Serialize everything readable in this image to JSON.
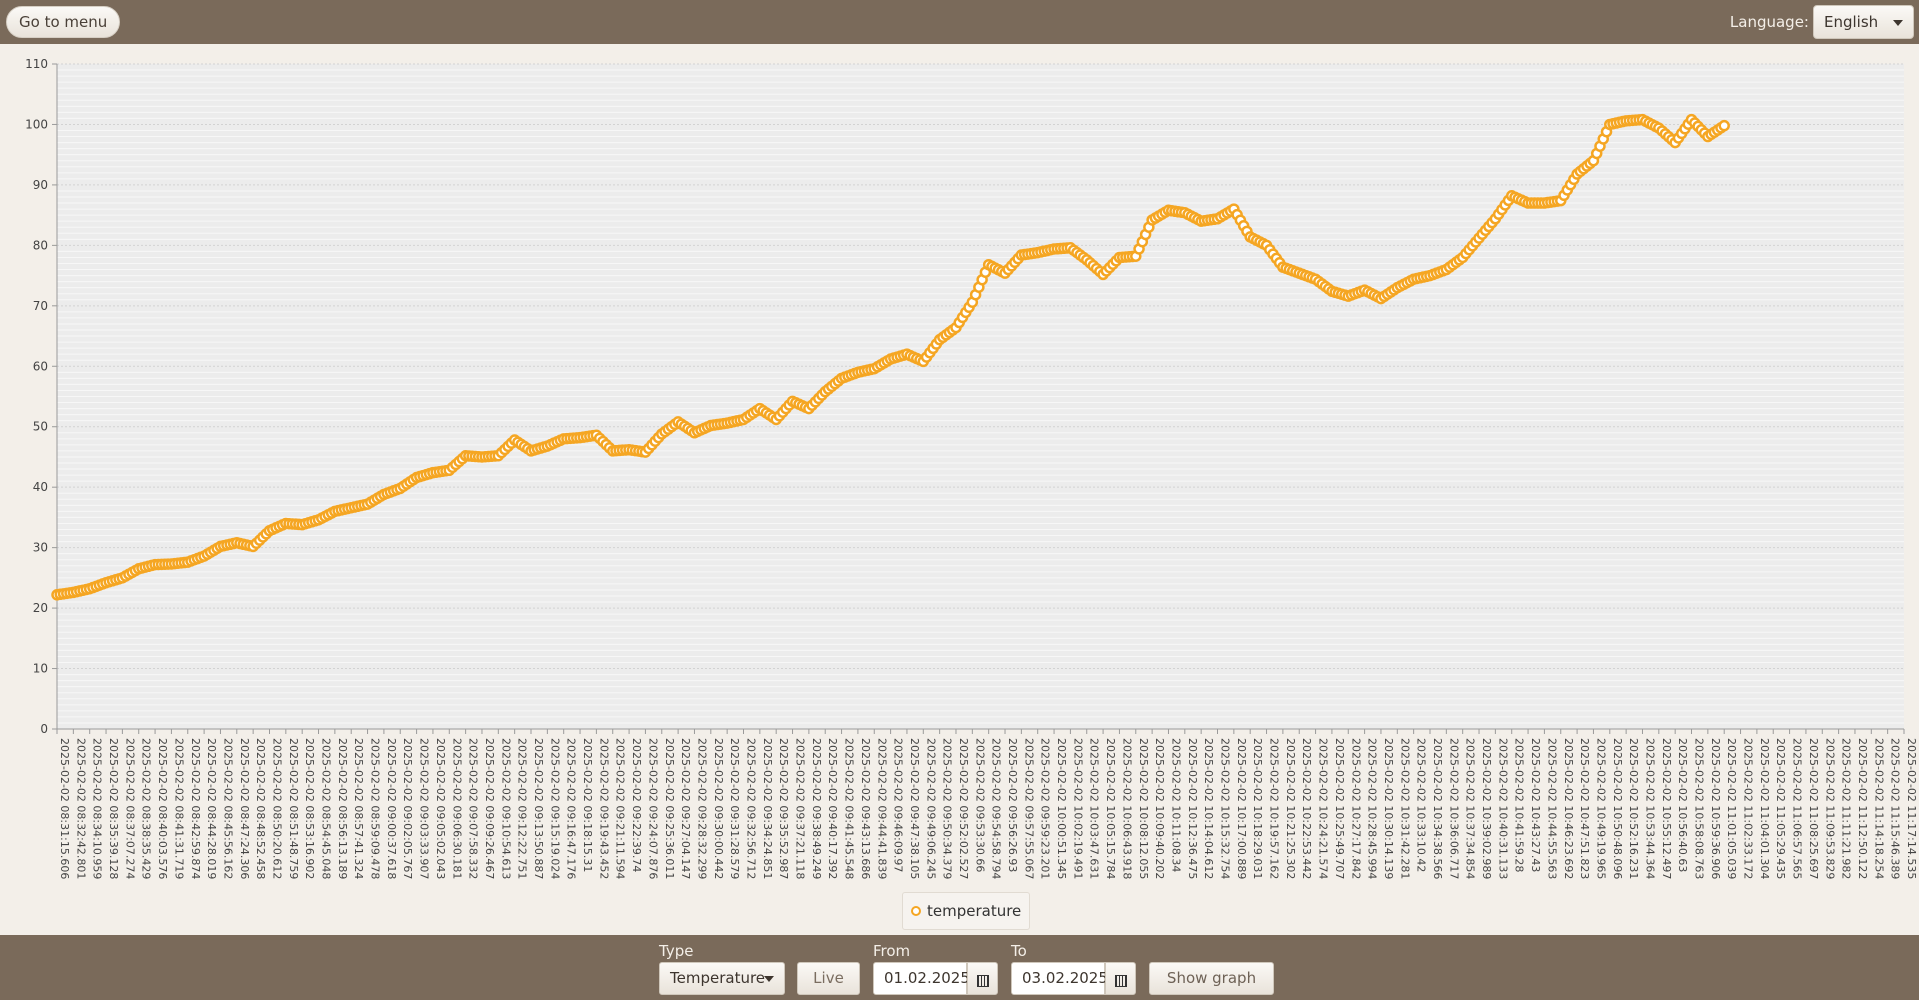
{
  "header": {
    "menu_button": "Go to menu",
    "language_label": "Language:",
    "language_value": "English"
  },
  "legend": {
    "label": "temperature",
    "color": "#f5a623"
  },
  "controls": {
    "type_label": "Type",
    "type_value": "Temperature",
    "live_button": "Live",
    "from_label": "From",
    "from_value": "01.02.2025",
    "to_label": "To",
    "to_value": "03.02.2025",
    "show_button": "Show graph"
  },
  "chart_data": {
    "type": "line",
    "ylim": [
      0,
      110
    ],
    "y_ticks": [
      0,
      10,
      20,
      30,
      40,
      50,
      60,
      70,
      80,
      90,
      100,
      110
    ],
    "x_tick_labels": [
      "2025-02-02 08:31:15.606",
      "2025-02-02 08:32:42.801",
      "2025-02-02 08:34:10.959",
      "2025-02-02 08:35:39.128",
      "2025-02-02 08:37:07.274",
      "2025-02-02 08:38:35.429",
      "2025-02-02 08:40:03.576",
      "2025-02-02 08:41:31.719",
      "2025-02-02 08:42:59.874",
      "2025-02-02 08:44:28.019",
      "2025-02-02 08:45:56.162",
      "2025-02-02 08:47:24.306",
      "2025-02-02 08:48:52.458",
      "2025-02-02 08:50:20.612",
      "2025-02-02 08:51:48.759",
      "2025-02-02 08:53:16.902",
      "2025-02-02 08:54:45.048",
      "2025-02-02 08:56:13.189",
      "2025-02-02 08:57:41.324",
      "2025-02-02 08:59:09.478",
      "2025-02-02 09:00:37.618",
      "2025-02-02 09:02:05.767",
      "2025-02-02 09:03:33.907",
      "2025-02-02 09:05:02.043",
      "2025-02-02 09:06:30.181",
      "2025-02-02 09:07:58.332",
      "2025-02-02 09:09:26.467",
      "2025-02-02 09:10:54.613",
      "2025-02-02 09:12:22.751",
      "2025-02-02 09:13:50.887",
      "2025-02-02 09:15:19.024",
      "2025-02-02 09:16:47.176",
      "2025-02-02 09:18:15.31",
      "2025-02-02 09:19:43.452",
      "2025-02-02 09:21:11.594",
      "2025-02-02 09:22:39.74",
      "2025-02-02 09:24:07.876",
      "2025-02-02 09:25:36.011",
      "2025-02-02 09:27:04.147",
      "2025-02-02 09:28:32.299",
      "2025-02-02 09:30:00.442",
      "2025-02-02 09:31:28.579",
      "2025-02-02 09:32:56.712",
      "2025-02-02 09:34:24.851",
      "2025-02-02 09:35:52.987",
      "2025-02-02 09:37:21.118",
      "2025-02-02 09:38:49.249",
      "2025-02-02 09:40:17.392",
      "2025-02-02 09:41:45.548",
      "2025-02-02 09:43:13.686",
      "2025-02-02 09:44:41.839",
      "2025-02-02 09:46:09.97",
      "2025-02-02 09:47:38.105",
      "2025-02-02 09:49:06.245",
      "2025-02-02 09:50:34.379",
      "2025-02-02 09:52:02.527",
      "2025-02-02 09:53:30.66",
      "2025-02-02 09:54:58.794",
      "2025-02-02 09:56:26.93",
      "2025-02-02 09:57:55.067",
      "2025-02-02 09:59:23.201",
      "2025-02-02 10:00:51.345",
      "2025-02-02 10:02:19.491",
      "2025-02-02 10:03:47.631",
      "2025-02-02 10:05:15.784",
      "2025-02-02 10:06:43.918",
      "2025-02-02 10:08:12.055",
      "2025-02-02 10:09:40.202",
      "2025-02-02 10:11:08.34",
      "2025-02-02 10:12:36.475",
      "2025-02-02 10:14:04.612",
      "2025-02-02 10:15:32.754",
      "2025-02-02 10:17:00.889",
      "2025-02-02 10:18:29.031",
      "2025-02-02 10:19:57.162",
      "2025-02-02 10:21:25.302",
      "2025-02-02 10:22:53.442",
      "2025-02-02 10:24:21.574",
      "2025-02-02 10:25:49.707",
      "2025-02-02 10:27:17.842",
      "2025-02-02 10:28:45.994",
      "2025-02-02 10:30:14.139",
      "2025-02-02 10:31:42.281",
      "2025-02-02 10:33:10.42",
      "2025-02-02 10:34:38.566",
      "2025-02-02 10:36:06.717",
      "2025-02-02 10:37:34.854",
      "2025-02-02 10:39:02.989",
      "2025-02-02 10:40:31.133",
      "2025-02-02 10:41:59.28",
      "2025-02-02 10:43:27.43",
      "2025-02-02 10:44:55.563",
      "2025-02-02 10:46:23.692",
      "2025-02-02 10:47:51.823",
      "2025-02-02 10:49:19.965",
      "2025-02-02 10:50:48.096",
      "2025-02-02 10:52:16.231",
      "2025-02-02 10:53:44.364",
      "2025-02-02 10:55:12.497",
      "2025-02-02 10:56:40.63",
      "2025-02-02 10:58:08.763",
      "2025-02-02 10:59:36.906",
      "2025-02-02 11:01:05.039",
      "2025-02-02 11:02:33.172",
      "2025-02-02 11:04:01.304",
      "2025-02-02 11:05:29.435",
      "2025-02-02 11:06:57.565",
      "2025-02-02 11:08:25.697",
      "2025-02-02 11:09:53.829",
      "2025-02-02 11:11:21.982",
      "2025-02-02 11:12:50.122",
      "2025-02-02 11:14:18.254",
      "2025-02-02 11:15:46.389",
      "2025-02-02 11:17:14.535"
    ],
    "series": [
      {
        "name": "temperature",
        "color": "#f5a623",
        "samples_per_label": 5,
        "points": [
          [
            0,
            22.2
          ],
          [
            1,
            22.6
          ],
          [
            2,
            23.2
          ],
          [
            3,
            24.2
          ],
          [
            4,
            25.0
          ],
          [
            5,
            26.5
          ],
          [
            6,
            27.2
          ],
          [
            7,
            27.3
          ],
          [
            8,
            27.6
          ],
          [
            9,
            28.6
          ],
          [
            10,
            30.2
          ],
          [
            11,
            30.8
          ],
          [
            12,
            30.2
          ],
          [
            13,
            32.8
          ],
          [
            14,
            34.0
          ],
          [
            15,
            33.8
          ],
          [
            16,
            34.6
          ],
          [
            17,
            36.0
          ],
          [
            18,
            36.6
          ],
          [
            19,
            37.2
          ],
          [
            20,
            38.8
          ],
          [
            21,
            39.8
          ],
          [
            22,
            41.6
          ],
          [
            23,
            42.4
          ],
          [
            24,
            42.8
          ],
          [
            25,
            45.2
          ],
          [
            26,
            45.0
          ],
          [
            27,
            45.2
          ],
          [
            28,
            47.8
          ],
          [
            29,
            46.0
          ],
          [
            30,
            46.8
          ],
          [
            31,
            48.0
          ],
          [
            32,
            48.2
          ],
          [
            33,
            48.6
          ],
          [
            34,
            46.0
          ],
          [
            35,
            46.2
          ],
          [
            36,
            45.8
          ],
          [
            37,
            48.8
          ],
          [
            38,
            50.8
          ],
          [
            39,
            49.0
          ],
          [
            40,
            50.2
          ],
          [
            41,
            50.6
          ],
          [
            42,
            51.2
          ],
          [
            43,
            53.0
          ],
          [
            44,
            51.2
          ],
          [
            45,
            54.2
          ],
          [
            46,
            53.0
          ],
          [
            47,
            55.8
          ],
          [
            48,
            58.0
          ],
          [
            49,
            59.0
          ],
          [
            50,
            59.6
          ],
          [
            51,
            61.2
          ],
          [
            52,
            62.0
          ],
          [
            53,
            60.8
          ],
          [
            54,
            64.4
          ],
          [
            55,
            66.4
          ],
          [
            56,
            70.6
          ],
          [
            57,
            76.8
          ],
          [
            58,
            75.4
          ],
          [
            59,
            78.4
          ],
          [
            60,
            78.8
          ],
          [
            61,
            79.4
          ],
          [
            62,
            79.6
          ],
          [
            63,
            77.6
          ],
          [
            64,
            75.2
          ],
          [
            65,
            78.0
          ],
          [
            66,
            78.2
          ],
          [
            67,
            84.2
          ],
          [
            68,
            85.8
          ],
          [
            69,
            85.4
          ],
          [
            70,
            84.0
          ],
          [
            71,
            84.4
          ],
          [
            72,
            86.0
          ],
          [
            73,
            81.4
          ],
          [
            74,
            80.0
          ],
          [
            75,
            76.4
          ],
          [
            76,
            75.4
          ],
          [
            77,
            74.4
          ],
          [
            78,
            72.4
          ],
          [
            79,
            71.6
          ],
          [
            80,
            72.6
          ],
          [
            81,
            71.2
          ],
          [
            82,
            73.0
          ],
          [
            83,
            74.4
          ],
          [
            84,
            75.0
          ],
          [
            85,
            76.0
          ],
          [
            86,
            78.0
          ],
          [
            87,
            81.2
          ],
          [
            88,
            84.4
          ],
          [
            89,
            88.2
          ],
          [
            90,
            87.0
          ],
          [
            91,
            87.0
          ],
          [
            92,
            87.4
          ],
          [
            93,
            91.8
          ],
          [
            94,
            94.0
          ],
          [
            95,
            100.0
          ],
          [
            96,
            100.6
          ],
          [
            97,
            100.8
          ],
          [
            98,
            99.4
          ],
          [
            99,
            97.0
          ],
          [
            100,
            100.8
          ],
          [
            101,
            98.0
          ],
          [
            102,
            99.8
          ]
        ]
      }
    ]
  }
}
